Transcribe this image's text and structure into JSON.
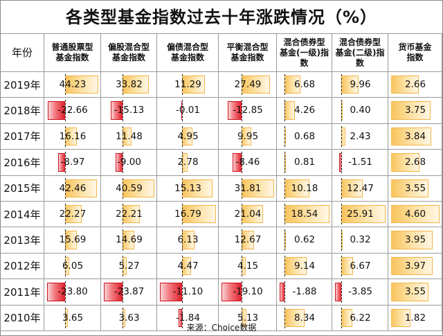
{
  "title": "各类型基金指数过去十年涨跌情况（%）",
  "source": "来源：Choice数据",
  "chart_data": {
    "type": "table",
    "title": "各类型基金指数过去十年涨跌情况（%）",
    "row_header": "年份",
    "columns": [
      {
        "label": "普通股票型基金指数",
        "lines": [
          "普通股票型",
          "基金指数"
        ]
      },
      {
        "label": "偏股混合型基金指数",
        "lines": [
          "偏股混合型",
          "基金指数"
        ]
      },
      {
        "label": "偏债混合型基金指数",
        "lines": [
          "偏债混合型",
          "基金指数"
        ]
      },
      {
        "label": "平衡混合型基金指数",
        "lines": [
          "平衡混合型",
          "基金指数"
        ]
      },
      {
        "label": "混合债券型基金(一级)指数",
        "lines": [
          "混合债券型",
          "基金(一级)指",
          "数"
        ]
      },
      {
        "label": "混合债券型基金(二级)指数",
        "lines": [
          "混合债券型",
          "基金(二级)指",
          "数"
        ]
      },
      {
        "label": "货币基金指数",
        "lines": [
          "货币基金",
          "指数"
        ]
      }
    ],
    "rows": [
      {
        "year": "2019年",
        "values": [
          "44.23",
          "33.82",
          "11.29",
          "27.49",
          "6.68",
          "9.96",
          "2.66"
        ]
      },
      {
        "year": "2018年",
        "values": [
          "-22.66",
          "-15.13",
          "-0.01",
          "-12.85",
          "4.26",
          "0.40",
          "3.75"
        ]
      },
      {
        "year": "2017年",
        "values": [
          "16.16",
          "11.48",
          "4.95",
          "9.95",
          "0.68",
          "2.43",
          "3.84"
        ]
      },
      {
        "year": "2016年",
        "values": [
          "-8.97",
          "-9.00",
          "2.78",
          "-8.46",
          "0.81",
          "-1.51",
          "2.68"
        ]
      },
      {
        "year": "2015年",
        "values": [
          "42.46",
          "40.59",
          "15.13",
          "31.81",
          "10.18",
          "12.47",
          "3.55"
        ]
      },
      {
        "year": "2014年",
        "values": [
          "22.27",
          "22.21",
          "16.79",
          "21.04",
          "18.54",
          "25.91",
          "4.60"
        ]
      },
      {
        "year": "2013年",
        "values": [
          "15.69",
          "14.69",
          "6.13",
          "12.67",
          "0.62",
          "0.32",
          "3.95"
        ]
      },
      {
        "year": "2012年",
        "values": [
          "6.05",
          "5.27",
          "4.47",
          "4.15",
          "9.14",
          "6.67",
          "3.97"
        ]
      },
      {
        "year": "2011年",
        "values": [
          "-23.80",
          "-23.87",
          "-11.10",
          "-19.10",
          "-1.88",
          "-3.85",
          "3.55"
        ]
      },
      {
        "year": "2010年",
        "values": [
          "3.65",
          "3.63",
          "-1.84",
          "5.13",
          "8.34",
          "6.22",
          "1.82"
        ]
      }
    ],
    "bar_colors": {
      "positive": "#f8c35a",
      "negative": "#e11e2a"
    },
    "ranges": [
      [
        -23.8,
        44.23
      ],
      [
        -23.87,
        40.59
      ],
      [
        -11.1,
        16.79
      ],
      [
        -19.1,
        31.81
      ],
      [
        -1.88,
        18.54
      ],
      [
        -3.85,
        25.91
      ],
      [
        0,
        4.6
      ]
    ]
  }
}
